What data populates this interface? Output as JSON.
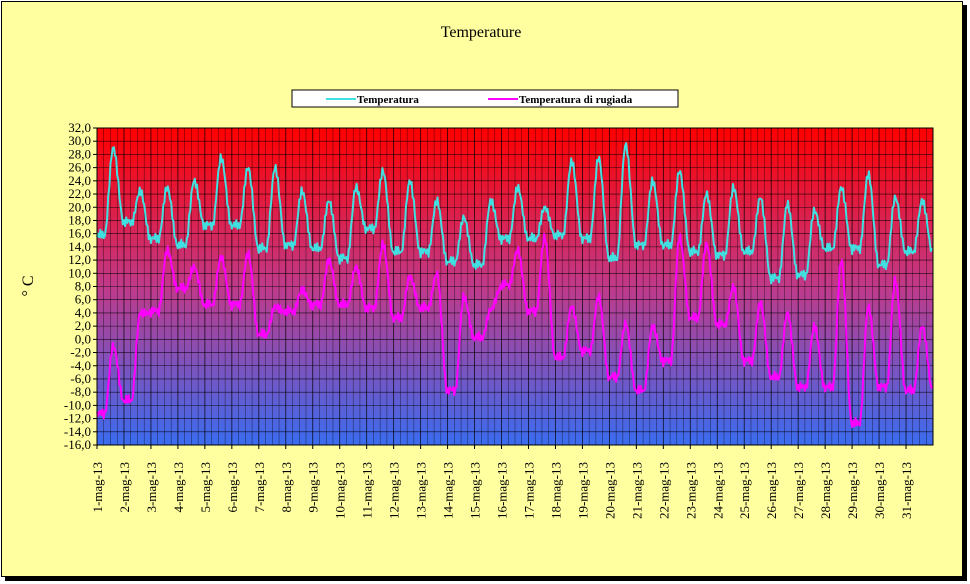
{
  "chart_data": {
    "type": "line",
    "title": "Temperature",
    "ylabel": "° C",
    "xlabel": "",
    "ylim": [
      -16,
      32
    ],
    "y_tick_step": 2,
    "x_tick_labels": [
      "1-mag-13",
      "2-mag-13",
      "3-mag-13",
      "4-mag-13",
      "5-mag-13",
      "6-mag-13",
      "7-mag-13",
      "8-mag-13",
      "9-mag-13",
      "10-mag-13",
      "11-mag-13",
      "12-mag-13",
      "13-mag-13",
      "14-mag-13",
      "15-mag-13",
      "16-mag-13",
      "17-mag-13",
      "18-mag-13",
      "19-mag-13",
      "20-mag-13",
      "21-mag-13",
      "22-mag-13",
      "23-mag-13",
      "24-mag-13",
      "25-mag-13",
      "26-mag-13",
      "27-mag-13",
      "28-mag-13",
      "29-mag-13",
      "30-mag-13",
      "31-mag-13"
    ],
    "grid": true,
    "legend_position": "top-center",
    "background_gradient": {
      "top": "#ff0000",
      "middle": "#c03a8a",
      "bottom": "#3a6cf0"
    },
    "series": [
      {
        "name": "Temperatura",
        "color": "#40e0e0",
        "daily_min": [
          15.5,
          17.5,
          15.0,
          14.0,
          17.0,
          17.0,
          13.5,
          14.0,
          13.5,
          12.0,
          16.5,
          13.0,
          13.0,
          11.5,
          11.0,
          15.0,
          15.0,
          15.5,
          15.0,
          12.0,
          14.0,
          14.0,
          13.0,
          12.5,
          13.0,
          9.0,
          9.5,
          13.5,
          13.5,
          11.0,
          13.0
        ],
        "daily_max": [
          29.0,
          22.5,
          23.0,
          24.0,
          27.5,
          26.0,
          26.0,
          22.5,
          21.0,
          23.0,
          25.5,
          24.0,
          21.0,
          18.5,
          21.0,
          23.0,
          20.0,
          27.0,
          27.5,
          29.5,
          24.0,
          25.5,
          22.0,
          23.0,
          21.5,
          20.5,
          19.5,
          23.0,
          25.0,
          21.5,
          21.0
        ]
      },
      {
        "name": "Temperatura di rugiada",
        "color": "#ff00ff",
        "daily_min": [
          -11.5,
          -9.5,
          4.0,
          7.5,
          5.0,
          5.0,
          0.5,
          4.0,
          5.0,
          5.0,
          4.5,
          3.0,
          4.5,
          -8.0,
          0.0,
          8.0,
          4.0,
          -3.0,
          -2.0,
          -6.0,
          -8.0,
          -3.5,
          3.0,
          2.0,
          -3.5,
          -6.0,
          -7.5,
          -7.5,
          -13.0,
          -7.5,
          -8.0
        ],
        "daily_max": [
          -1.0,
          4.0,
          13.5,
          11.0,
          12.5,
          13.0,
          5.0,
          7.5,
          12.0,
          11.0,
          14.5,
          9.5,
          10.0,
          6.5,
          4.5,
          13.5,
          15.5,
          5.0,
          6.5,
          2.5,
          2.0,
          15.5,
          14.5,
          8.0,
          5.5,
          4.0,
          2.0,
          12.0,
          5.0,
          9.0,
          2.0
        ]
      }
    ]
  }
}
